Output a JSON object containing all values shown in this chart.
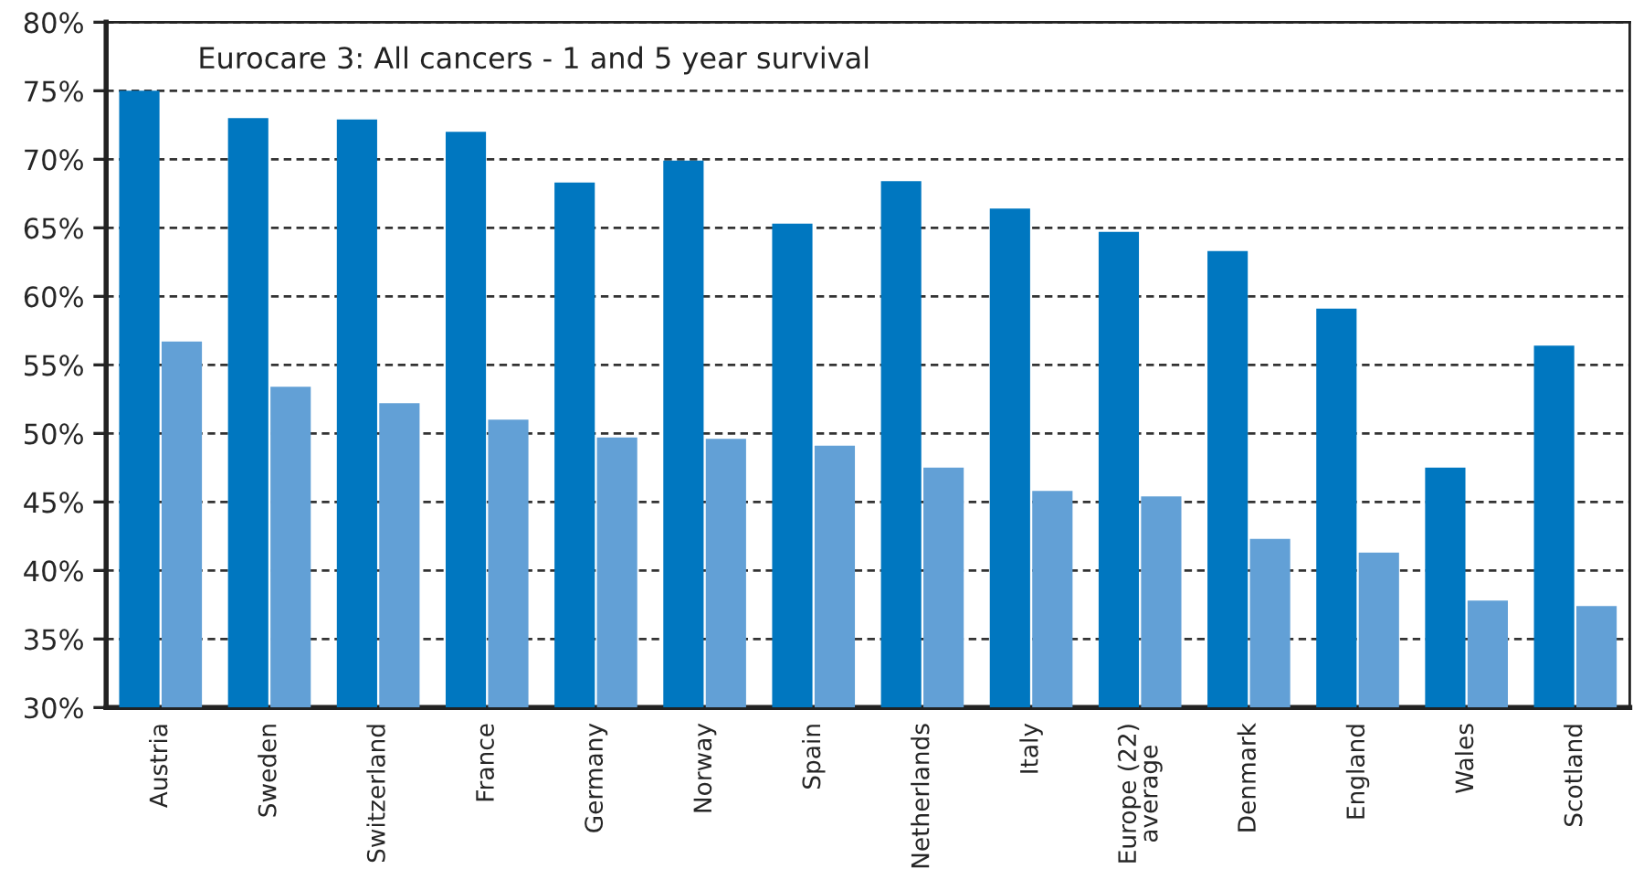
{
  "chart_data": {
    "type": "bar",
    "title": "Eurocare 3: All cancers - 1 and 5 year survival",
    "categories": [
      "Austria",
      "Sweden",
      "Switzerland",
      "France",
      "Germany",
      "Norway",
      "Spain",
      "Netherlands",
      "Italy",
      "Europe (22)\naverage",
      "Denmark",
      "England",
      "Wales",
      "Scotland"
    ],
    "series": [
      {
        "color": "#0077c0",
        "values": [
          75.0,
          73.0,
          72.9,
          72.0,
          68.3,
          69.9,
          65.3,
          68.4,
          66.4,
          64.7,
          63.3,
          59.1,
          47.5,
          56.4
        ]
      },
      {
        "color": "#62a0d6",
        "values": [
          56.7,
          53.4,
          52.2,
          51.0,
          49.7,
          49.6,
          49.1,
          47.5,
          45.8,
          45.4,
          42.3,
          41.3,
          37.8,
          37.4
        ]
      }
    ],
    "ylim": [
      30,
      80
    ],
    "yticks": [
      {
        "value": 30,
        "label": "30%"
      },
      {
        "value": 35,
        "label": "35%"
      },
      {
        "value": 40,
        "label": "40%"
      },
      {
        "value": 45,
        "label": "45%"
      },
      {
        "value": 50,
        "label": "50%"
      },
      {
        "value": 55,
        "label": "55%"
      },
      {
        "value": 60,
        "label": "60%"
      },
      {
        "value": 65,
        "label": "65%"
      },
      {
        "value": 70,
        "label": "70%"
      },
      {
        "value": 75,
        "label": "75%"
      },
      {
        "value": 80,
        "label": "80%"
      }
    ],
    "grid": "y",
    "legend": false
  }
}
